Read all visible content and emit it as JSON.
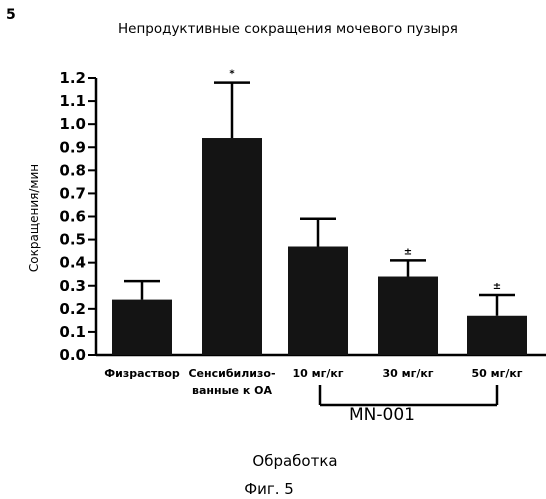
{
  "figure_number": "5",
  "caption": "Фиг. 5",
  "chart_data": {
    "type": "bar",
    "title": "Непродуктивные сокращения мочевого пузыря",
    "ylabel": "Сокращения/мин",
    "xlabel": "Обработка",
    "ylim": [
      0,
      1.2
    ],
    "yticks": [
      "0.0",
      "0.1",
      "0.2",
      "0.3",
      "0.4",
      "0.5",
      "0.6",
      "0.7",
      "0.8",
      "0.9",
      "1.0",
      "1.1",
      "1.2"
    ],
    "categories": [
      [
        "Физраствор"
      ],
      [
        "Сенсибилизо-",
        "ванные к ОА"
      ],
      [
        "10 мг/кг"
      ],
      [
        "30 мг/кг"
      ],
      [
        "50 мг/кг"
      ]
    ],
    "values": [
      0.24,
      0.94,
      0.47,
      0.34,
      0.17
    ],
    "errors": [
      0.08,
      0.24,
      0.12,
      0.07,
      0.09
    ],
    "significance": [
      "",
      "*",
      "",
      "±",
      "±"
    ],
    "group_label": "MN-001",
    "grid": false
  }
}
